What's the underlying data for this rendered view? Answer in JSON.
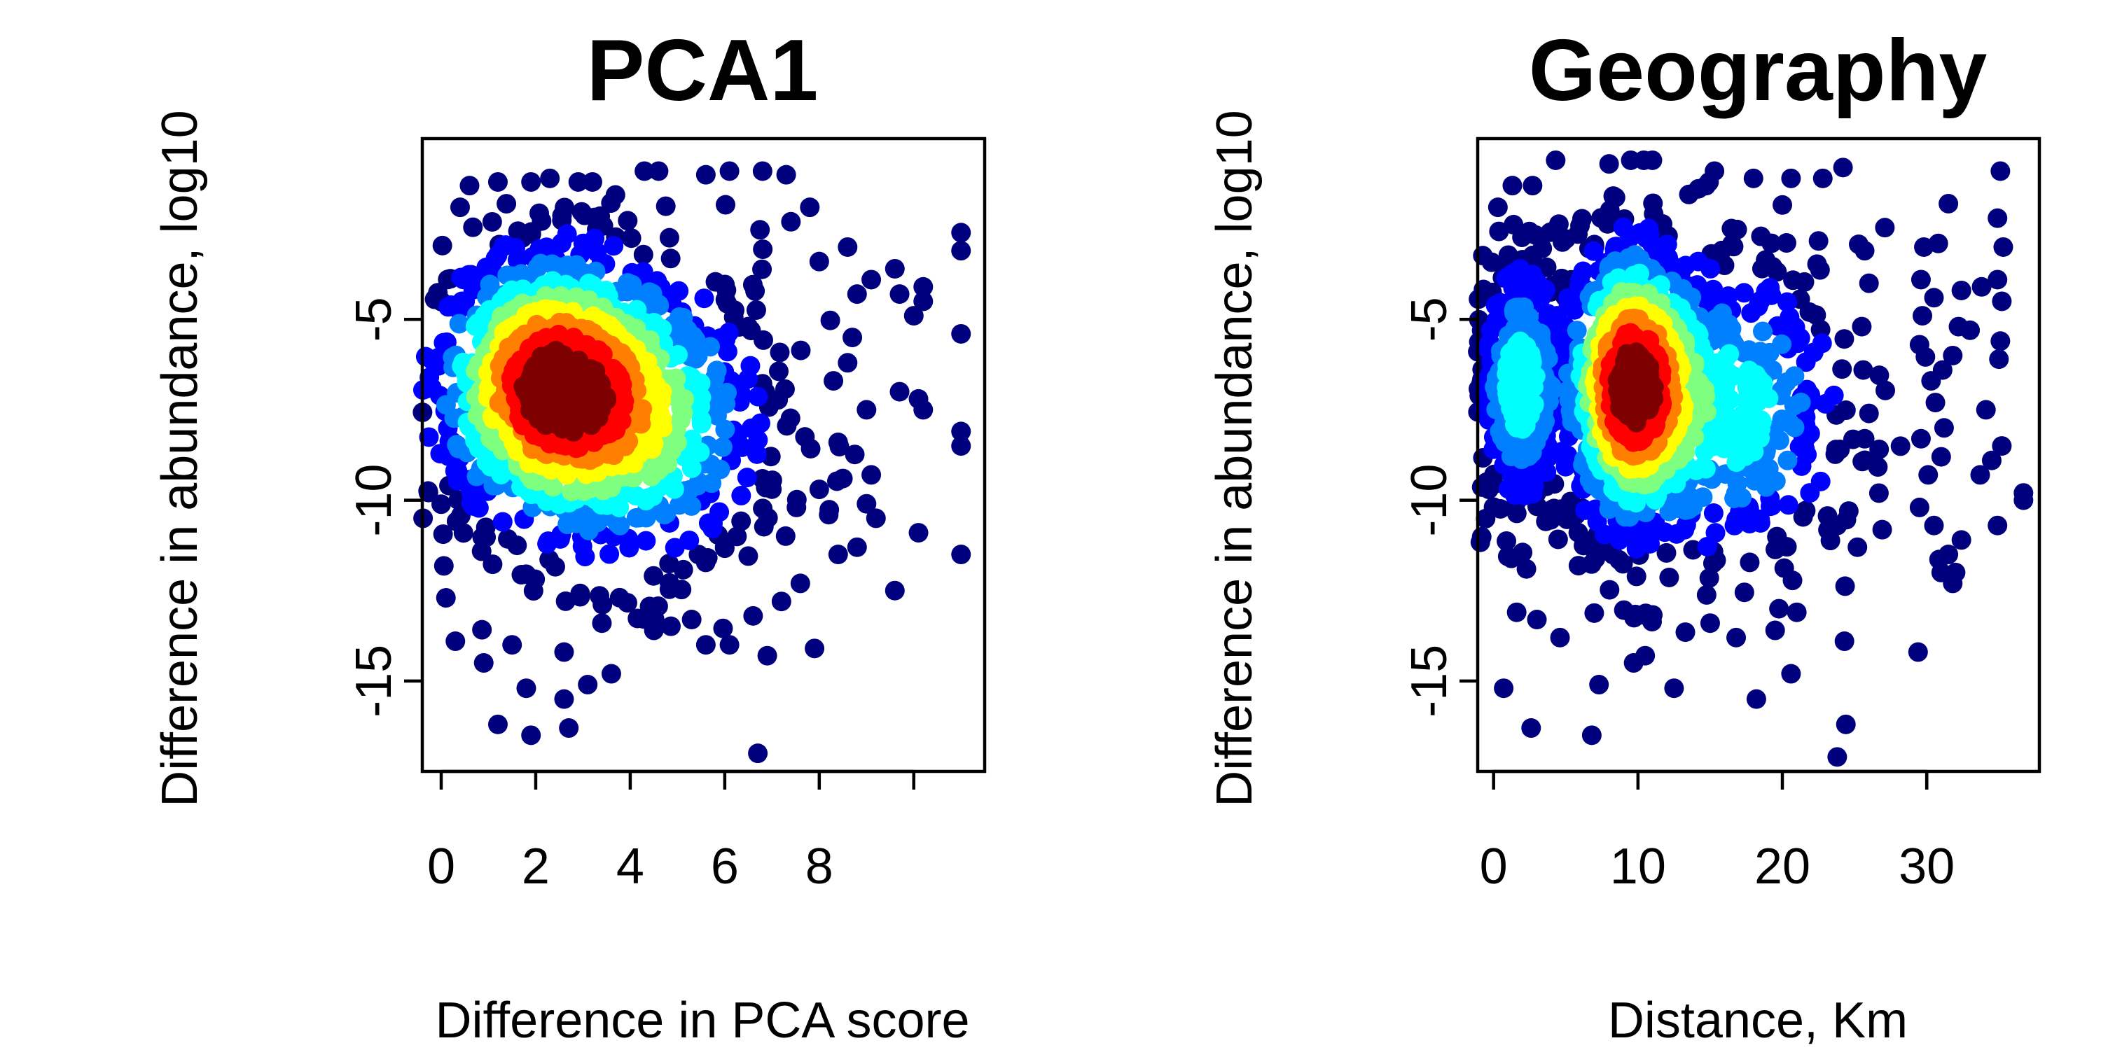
{
  "chart_data": [
    {
      "type": "scatter",
      "title": "PCA1",
      "xlabel": "Difference in PCA score",
      "ylabel": "Difference in abundance, log10",
      "xlim": [
        -0.4,
        11.5
      ],
      "ylim": [
        -17.5,
        0
      ],
      "x_ticks": [
        0,
        2,
        4,
        6,
        8
      ],
      "x_tick_labels": [
        "0",
        "2",
        "4",
        "6",
        "8"
      ],
      "x_axis_end": 10,
      "y_ticks": [
        -5,
        -10,
        -15
      ],
      "y_tick_labels": [
        "-5",
        "-10",
        "-15"
      ],
      "color_scale": "density (dark blue = low, dark red = high)",
      "colors": [
        "#00007f",
        "#0000ff",
        "#007fff",
        "#00ffff",
        "#7fff7f",
        "#ffff00",
        "#ff7f00",
        "#ff0000",
        "#7f0000"
      ],
      "clusters": [
        {
          "x": 2.2,
          "y": -6.8,
          "sx": 1.3,
          "sy": 2.0,
          "weight": 1.0
        },
        {
          "x": 4.3,
          "y": -7.8,
          "sx": 1.5,
          "sy": 2.3,
          "weight": 0.55
        }
      ],
      "points": [
        [
          6.7,
          -17.0
        ],
        [
          2.7,
          -16.3
        ],
        [
          1.9,
          -16.5
        ],
        [
          1.2,
          -16.2
        ],
        [
          2.6,
          -15.5
        ],
        [
          3.1,
          -15.1
        ],
        [
          1.8,
          -15.2
        ],
        [
          3.6,
          -14.8
        ],
        [
          0.9,
          -14.5
        ],
        [
          7.9,
          -14.1
        ],
        [
          5.6,
          -14.0
        ],
        [
          6.1,
          -14.0
        ],
        [
          6.9,
          -14.3
        ],
        [
          9.6,
          -12.5
        ],
        [
          10.1,
          -10.9
        ],
        [
          11.0,
          -11.5
        ],
        [
          11.0,
          -8.5
        ],
        [
          11.0,
          -8.1
        ],
        [
          11.0,
          -5.4
        ],
        [
          11.0,
          -2.6
        ],
        [
          11.0,
          -3.1
        ],
        [
          10.2,
          -4.1
        ],
        [
          10.2,
          -4.5
        ],
        [
          10.0,
          -4.9
        ],
        [
          9.6,
          -3.6
        ],
        [
          9.7,
          -4.3
        ],
        [
          9.7,
          -7.0
        ],
        [
          10.2,
          -7.5
        ],
        [
          10.1,
          -7.2
        ],
        [
          9.1,
          -3.9
        ],
        [
          8.8,
          -4.3
        ],
        [
          8.6,
          -3.0
        ],
        [
          8.7,
          -5.5
        ],
        [
          9.0,
          -7.5
        ],
        [
          9.1,
          -9.3
        ],
        [
          9.0,
          -10.1
        ],
        [
          8.8,
          -11.3
        ],
        [
          8.4,
          -11.5
        ],
        [
          8.5,
          -9.4
        ],
        [
          8.4,
          -8.4
        ],
        [
          8.3,
          -6.7
        ],
        [
          8.6,
          -6.2
        ],
        [
          8.0,
          -3.4
        ],
        [
          7.8,
          -1.9
        ],
        [
          7.4,
          -2.3
        ],
        [
          7.3,
          -1.0
        ],
        [
          6.8,
          -0.9
        ],
        [
          6.1,
          -0.9
        ],
        [
          5.6,
          -1.0
        ],
        [
          4.6,
          -0.9
        ],
        [
          4.3,
          -0.9
        ],
        [
          3.2,
          -1.2
        ],
        [
          2.9,
          -1.2
        ],
        [
          2.3,
          -1.1
        ],
        [
          1.9,
          -1.2
        ],
        [
          1.2,
          -1.2
        ],
        [
          0.6,
          -1.3
        ],
        [
          0.4,
          -1.9
        ],
        [
          7.6,
          -12.3
        ],
        [
          7.2,
          -12.8
        ],
        [
          6.6,
          -13.2
        ],
        [
          5.3,
          -13.3
        ],
        [
          4.5,
          -13.6
        ],
        [
          3.4,
          -13.4
        ],
        [
          2.6,
          -14.2
        ],
        [
          1.5,
          -14.0
        ],
        [
          0.3,
          -13.9
        ],
        [
          0.1,
          -12.7
        ],
        [
          9.2,
          -10.5
        ],
        [
          8.2,
          -10.4
        ],
        [
          8.0,
          -9.7
        ]
      ]
    },
    {
      "type": "scatter",
      "title": "Geography",
      "xlabel": "Distance, Km",
      "ylabel": "Difference in abundance, log10",
      "xlim": [
        -1.1,
        37.8
      ],
      "ylim": [
        -17.5,
        0
      ],
      "x_ticks": [
        0,
        10,
        20,
        30
      ],
      "x_tick_labels": [
        "0",
        "10",
        "20",
        "30"
      ],
      "x_axis_end": 30,
      "y_ticks": [
        -5,
        -10,
        -15
      ],
      "y_tick_labels": [
        "-5",
        "-10",
        "-15"
      ],
      "color_scale": "density (dark blue = low, dark red = high)",
      "colors": [
        "#00007f",
        "#0000ff",
        "#007fff",
        "#00ffff",
        "#7fff7f",
        "#ffff00",
        "#ff7f00",
        "#ff0000",
        "#7f0000"
      ],
      "clusters": [
        {
          "x": 1.8,
          "y": -6.8,
          "sx": 1.6,
          "sy": 2.0,
          "weight": 0.45
        },
        {
          "x": 9.5,
          "y": -6.8,
          "sx": 2.4,
          "sy": 2.1,
          "weight": 1.0
        },
        {
          "x": 16.5,
          "y": -7.5,
          "sx": 4.5,
          "sy": 2.4,
          "weight": 0.45
        }
      ],
      "points": [
        [
          23.8,
          -17.1
        ],
        [
          24.4,
          -16.2
        ],
        [
          6.8,
          -16.5
        ],
        [
          2.6,
          -16.3
        ],
        [
          0.7,
          -15.2
        ],
        [
          12.5,
          -15.2
        ],
        [
          18.2,
          -15.5
        ],
        [
          20.6,
          -14.8
        ],
        [
          29.4,
          -14.2
        ],
        [
          24.3,
          -13.9
        ],
        [
          7.3,
          -15.1
        ],
        [
          9.7,
          -14.5
        ],
        [
          10.5,
          -14.3
        ],
        [
          25.2,
          -11.3
        ],
        [
          24.6,
          -10.3
        ],
        [
          23.8,
          -10.7
        ],
        [
          34.9,
          -10.7
        ],
        [
          36.7,
          -10.0
        ],
        [
          36.7,
          -9.8
        ],
        [
          29.5,
          -10.2
        ],
        [
          30.5,
          -10.7
        ],
        [
          31.5,
          -11.5
        ],
        [
          31.8,
          -12.3
        ],
        [
          32.4,
          -11.1
        ],
        [
          32.0,
          -12.0
        ],
        [
          31.0,
          -12.0
        ],
        [
          33.7,
          -9.3
        ],
        [
          34.5,
          -8.9
        ],
        [
          35.2,
          -8.5
        ],
        [
          34.1,
          -7.5
        ],
        [
          30.6,
          -7.3
        ],
        [
          31.2,
          -8.0
        ],
        [
          31.0,
          -8.8
        ],
        [
          30.1,
          -9.3
        ],
        [
          29.6,
          -8.3
        ],
        [
          29.5,
          -5.7
        ],
        [
          30.3,
          -6.7
        ],
        [
          31.1,
          -6.4
        ],
        [
          31.8,
          -6.0
        ],
        [
          32.2,
          -5.2
        ],
        [
          33.0,
          -5.3
        ],
        [
          33.8,
          -4.1
        ],
        [
          34.9,
          -3.9
        ],
        [
          35.3,
          -3.0
        ],
        [
          35.2,
          -4.5
        ],
        [
          35.1,
          -5.6
        ],
        [
          35.0,
          -6.1
        ],
        [
          34.9,
          -2.2
        ],
        [
          35.1,
          -0.9
        ],
        [
          31.5,
          -1.8
        ],
        [
          29.8,
          -3.0
        ],
        [
          29.6,
          -3.9
        ],
        [
          30.8,
          -2.9
        ],
        [
          30.5,
          -4.4
        ],
        [
          29.7,
          -4.9
        ],
        [
          32.4,
          -4.2
        ],
        [
          25.7,
          -3.1
        ],
        [
          26.0,
          -4.0
        ],
        [
          25.5,
          -5.2
        ],
        [
          25.6,
          -6.4
        ],
        [
          26.0,
          -7.6
        ],
        [
          25.7,
          -8.3
        ],
        [
          24.2,
          -0.8
        ],
        [
          22.8,
          -1.1
        ],
        [
          20.6,
          -1.1
        ],
        [
          18.0,
          -1.1
        ],
        [
          15.3,
          -0.9
        ],
        [
          11.0,
          -0.6
        ],
        [
          10.4,
          -0.6
        ],
        [
          9.5,
          -0.6
        ],
        [
          8.0,
          -0.7
        ],
        [
          4.3,
          -0.6
        ],
        [
          2.7,
          -1.3
        ],
        [
          1.3,
          -1.3
        ],
        [
          0.3,
          -1.9
        ],
        [
          21.0,
          -13.1
        ],
        [
          19.5,
          -13.6
        ],
        [
          16.8,
          -13.8
        ],
        [
          15.0,
          -13.4
        ],
        [
          4.6,
          -13.8
        ],
        [
          3.0,
          -13.3
        ],
        [
          1.6,
          -13.1
        ]
      ]
    }
  ]
}
